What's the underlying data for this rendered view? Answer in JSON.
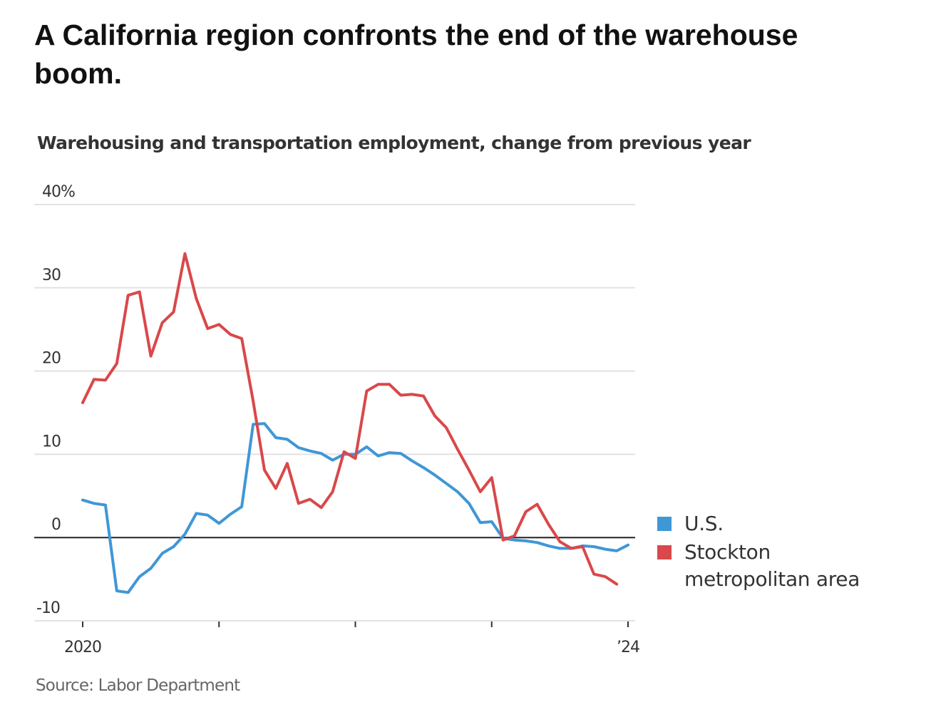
{
  "header": {
    "title": "A California region confronts the end of the warehouse boom.",
    "subtitle": "Warehousing and transportation employment, change from previous year",
    "source": "Source: Labor Department"
  },
  "chart_data": {
    "type": "line",
    "title": "Warehousing and transportation employment, change from previous year",
    "xlabel": "",
    "ylabel": "",
    "y_ticks": [
      {
        "value": 40,
        "label": "40%"
      },
      {
        "value": 30,
        "label": "30"
      },
      {
        "value": 20,
        "label": "20"
      },
      {
        "value": 10,
        "label": "10"
      },
      {
        "value": 0,
        "label": "0"
      },
      {
        "value": -10,
        "label": "-10"
      }
    ],
    "x_ticks": [
      {
        "value": 2020,
        "label": "2020"
      },
      {
        "value": 2021,
        "label": ""
      },
      {
        "value": 2022,
        "label": ""
      },
      {
        "value": 2023,
        "label": ""
      },
      {
        "value": 2024,
        "label": "’24"
      }
    ],
    "ylim": [
      -10,
      40
    ],
    "xlim": [
      2020,
      2024
    ],
    "grid": true,
    "legend_position": "right",
    "x_start": 2020.0,
    "x_step_months": 1,
    "series": [
      {
        "name": "U.S.",
        "color": "#3f97d6",
        "values": [
          4.5,
          4.1,
          3.9,
          -6.4,
          -6.6,
          -4.7,
          -3.7,
          -1.9,
          -1.1,
          0.4,
          2.9,
          2.7,
          1.7,
          2.8,
          3.7,
          13.6,
          13.7,
          12.0,
          11.8,
          10.8,
          10.4,
          10.1,
          9.3,
          10.0,
          10.0,
          10.9,
          9.8,
          10.2,
          10.1,
          9.2,
          8.4,
          7.5,
          6.5,
          5.5,
          4.1,
          1.8,
          1.9,
          -0.1,
          -0.3,
          -0.4,
          -0.6,
          -1.0,
          -1.3,
          -1.3,
          -1.0,
          -1.1,
          -1.4,
          -1.6,
          -0.9
        ]
      },
      {
        "name": "Stockton metropolitan area",
        "color": "#d9484a",
        "values": [
          16.2,
          19.0,
          18.9,
          20.9,
          29.1,
          29.5,
          21.8,
          25.8,
          27.1,
          34.1,
          28.7,
          25.1,
          25.6,
          24.4,
          23.9,
          16.4,
          8.1,
          5.9,
          8.9,
          4.1,
          4.6,
          3.6,
          5.5,
          10.3,
          9.5,
          17.6,
          18.4,
          18.4,
          17.1,
          17.2,
          17.0,
          14.6,
          13.2,
          10.6,
          8.1,
          5.5,
          7.2,
          -0.3,
          0.2,
          3.1,
          4.0,
          1.6,
          -0.5,
          -1.3,
          -1.1,
          -4.4,
          -4.7,
          -5.6
        ]
      }
    ]
  },
  "legend": {
    "items": [
      {
        "label": "U.S.",
        "color": "#3f97d6"
      },
      {
        "label": "Stockton metropolitan area",
        "color": "#d9484a"
      }
    ]
  }
}
